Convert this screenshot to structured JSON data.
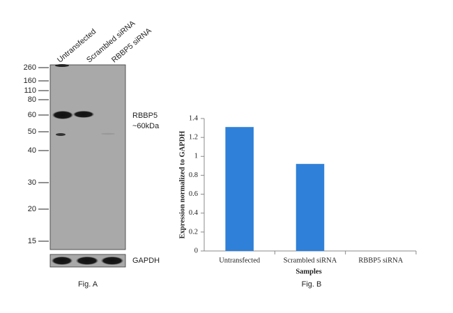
{
  "blot": {
    "lanes": [
      "Untransfected",
      "Scrambled siRNA",
      "RBBP5 siRNA"
    ],
    "markers": [
      260,
      160,
      110,
      80,
      60,
      50,
      40,
      30,
      20,
      15
    ],
    "target_label": "RBBP5",
    "target_size": "~60kDa",
    "control_label": "GAPDH",
    "caption": "Fig. A"
  },
  "chart_data": {
    "type": "bar",
    "caption": "Fig. B",
    "x_label": "Samples",
    "y_label": "Expression normalized to GAPDH",
    "categories": [
      "Untransfected",
      "Scrambled siRNA",
      "RBBP5 siRNA"
    ],
    "values": [
      1.31,
      0.92,
      0
    ],
    "color": "#2f80d8",
    "ylim": [
      0,
      1.4
    ],
    "yticks": [
      0,
      0.2,
      0.4,
      0.6,
      0.8,
      1,
      1.2,
      1.4
    ]
  }
}
